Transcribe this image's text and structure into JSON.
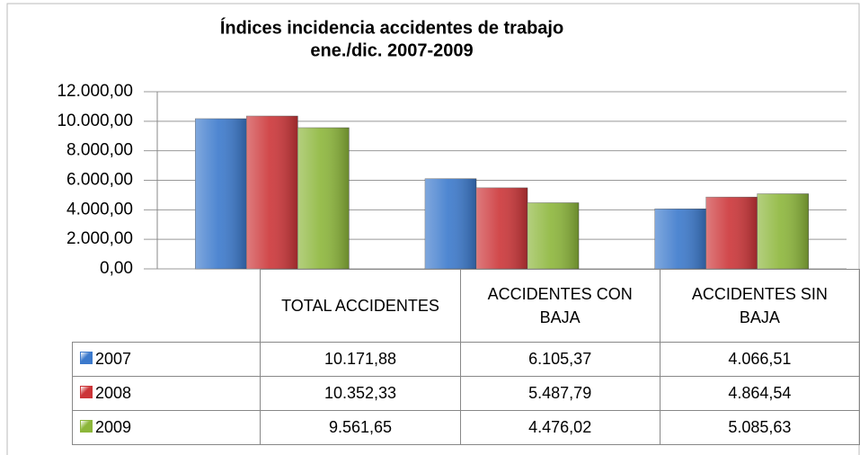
{
  "chart_data": {
    "type": "bar",
    "title": "Índices incidencia accidentes de trabajo",
    "subtitle": "ene./dic. 2007-2009",
    "categories": [
      "TOTAL ACCIDENTES",
      "ACCIDENTES CON BAJA",
      "ACCIDENTES SIN BAJA"
    ],
    "series": [
      {
        "name": "2007",
        "color": "#3b79cc",
        "values": [
          10171.88,
          6105.37,
          4066.51
        ],
        "value_labels": [
          "10.171,88",
          "6.105,37",
          "4.066,51"
        ]
      },
      {
        "name": "2008",
        "color": "#cc3538",
        "values": [
          10352.33,
          5487.79,
          4864.54
        ],
        "value_labels": [
          "10.352,33",
          "5.487,79",
          "4.864,54"
        ]
      },
      {
        "name": "2009",
        "color": "#8cb63a",
        "values": [
          9561.65,
          4476.02,
          5085.63
        ],
        "value_labels": [
          "9.561,65",
          "4.476,02",
          "5.085,63"
        ]
      }
    ],
    "ylim": [
      0,
      12000
    ],
    "yticks": [
      {
        "value": 0,
        "label": "0,00"
      },
      {
        "value": 2000,
        "label": "2.000,00"
      },
      {
        "value": 4000,
        "label": "4.000,00"
      },
      {
        "value": 6000,
        "label": "6.000,00"
      },
      {
        "value": 8000,
        "label": "8.000,00"
      },
      {
        "value": 10000,
        "label": "10.000,00"
      },
      {
        "value": 12000,
        "label": "12.000,00"
      }
    ],
    "grid": true
  }
}
